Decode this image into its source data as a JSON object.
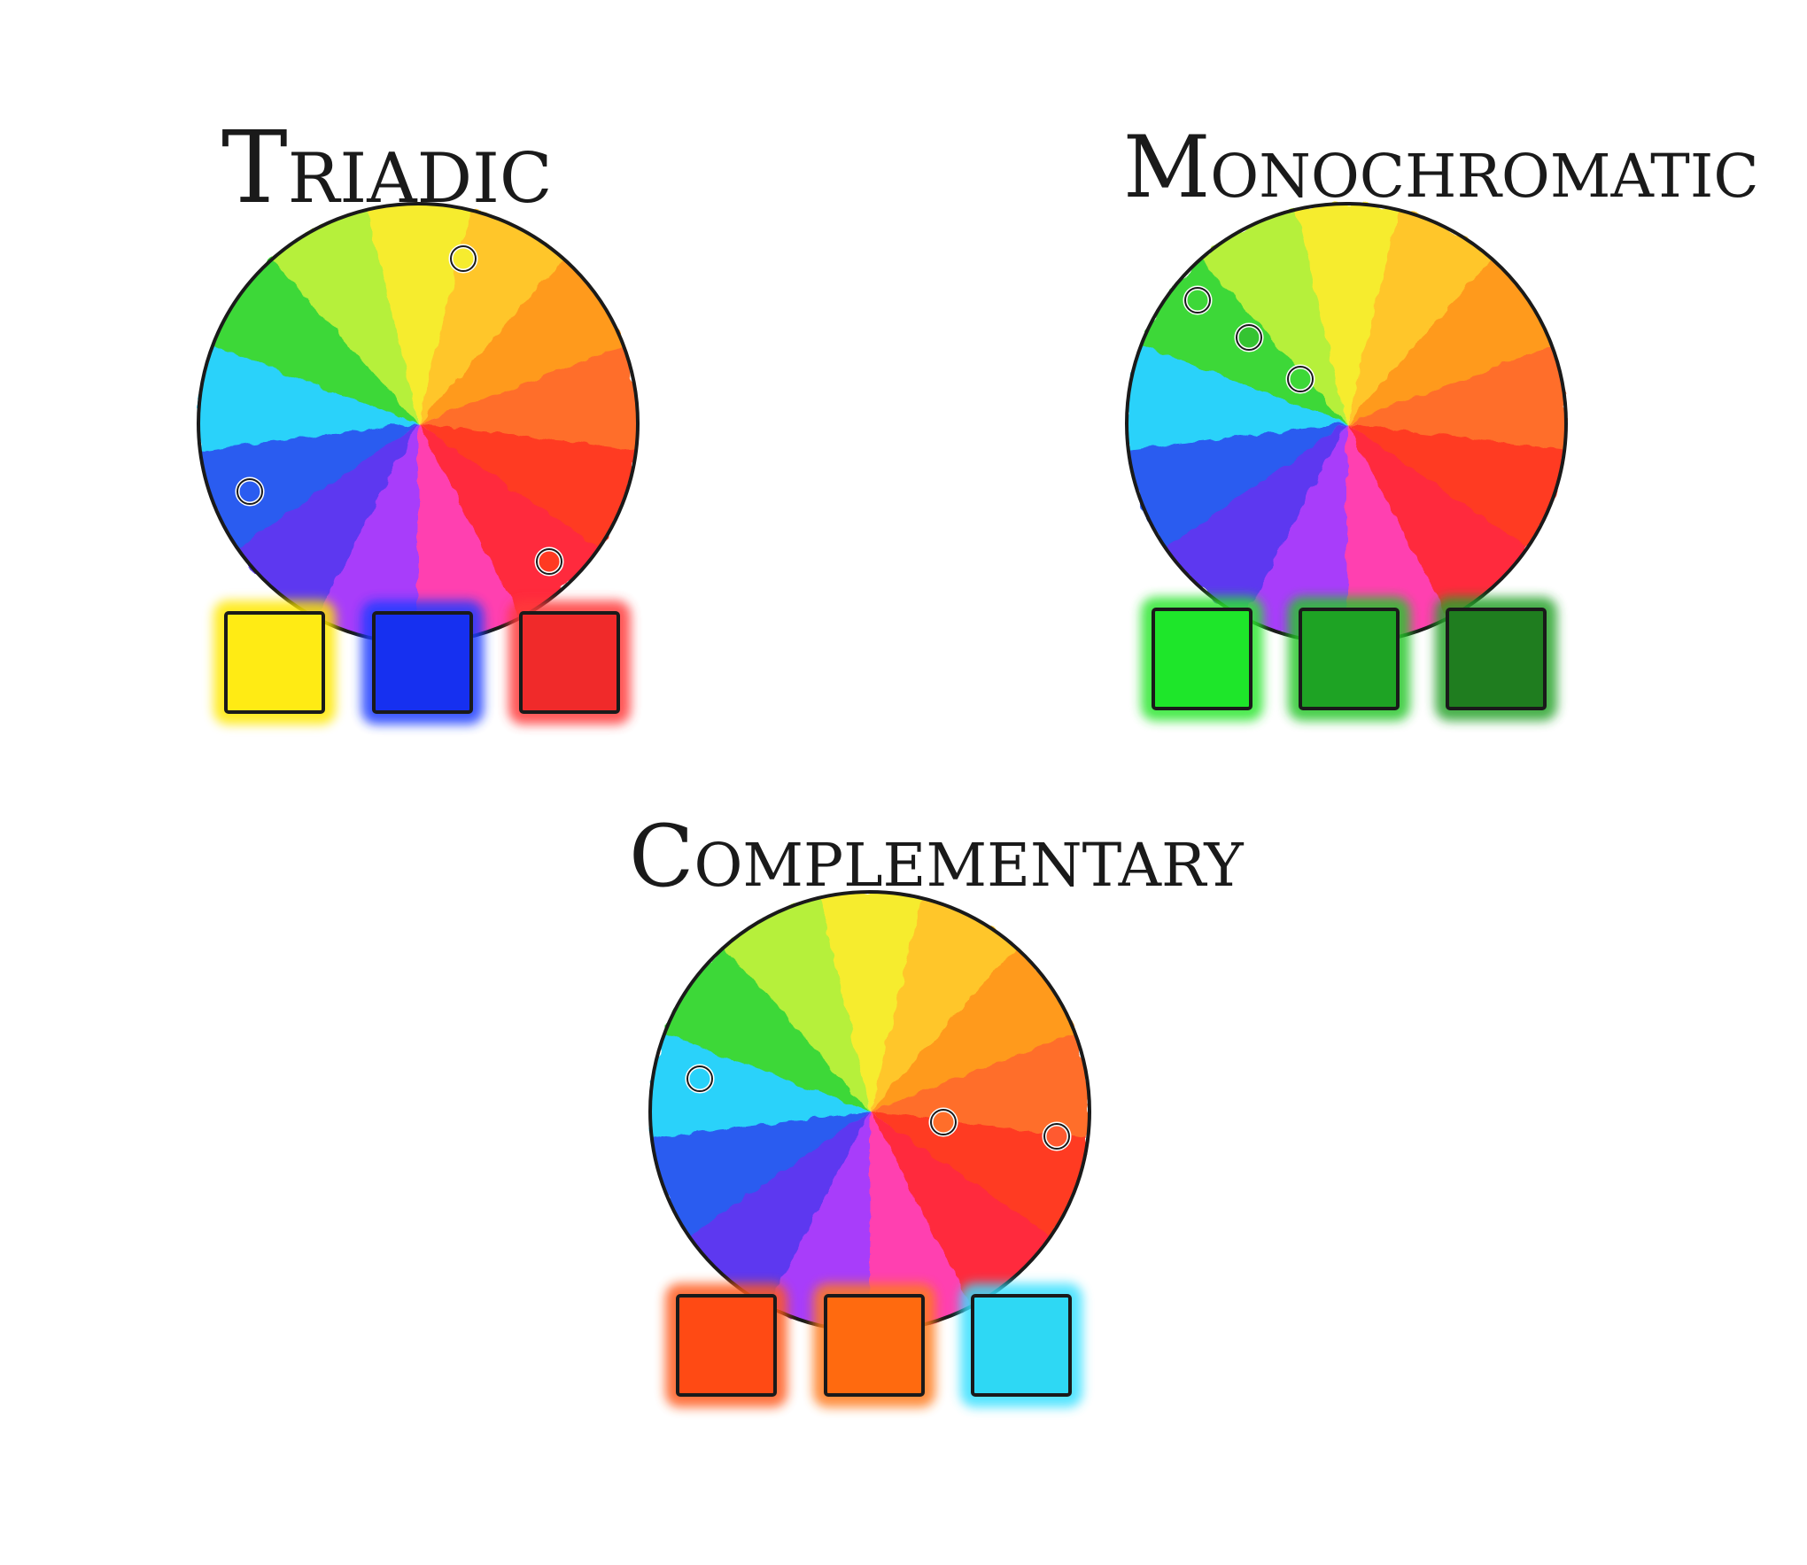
{
  "wheel_colors": [
    "#f6ec2f",
    "#ffc62c",
    "#ff9a1f",
    "#ff6e2a",
    "#ff3a22",
    "#ff2a3e",
    "#ff3fb0",
    "#a83dfa",
    "#5d38f0",
    "#2a5cf0",
    "#29d2fa",
    "#3dd838",
    "#b6f03a"
  ],
  "outline_color": "#1a1a1a",
  "schemes": [
    {
      "id": "triadic",
      "title": "Triadic",
      "marker_colors": [
        "#f6ec2f",
        "#2a5cf0",
        "#ff3a22"
      ],
      "swatches": [
        {
          "color": "#ffeb14",
          "glow": "#ffe800"
        },
        {
          "color": "#1630f0",
          "glow": "#1e3cff"
        },
        {
          "color": "#f02a2a",
          "glow": "#ff3a3a"
        }
      ]
    },
    {
      "id": "monochromatic",
      "title": "Monochromatic",
      "marker_colors": [
        "#3dd838",
        "#35c432",
        "#3dd838"
      ],
      "swatches": [
        {
          "color": "#1ee62a",
          "glow": "#2ce62e"
        },
        {
          "color": "#1ea324",
          "glow": "#26c62a"
        },
        {
          "color": "#1f7d1f",
          "glow": "#27a32a"
        }
      ]
    },
    {
      "id": "complementary",
      "title": "Complementary",
      "marker_colors": [
        "#29d2fa",
        "#ff6e2a",
        "#ff5a30"
      ],
      "swatches": [
        {
          "color": "#ff4a14",
          "glow": "#ff5a1e"
        },
        {
          "color": "#ff6a0f",
          "glow": "#ff7a1e"
        },
        {
          "color": "#2ed8f4",
          "glow": "#38e0ff"
        }
      ]
    }
  ]
}
